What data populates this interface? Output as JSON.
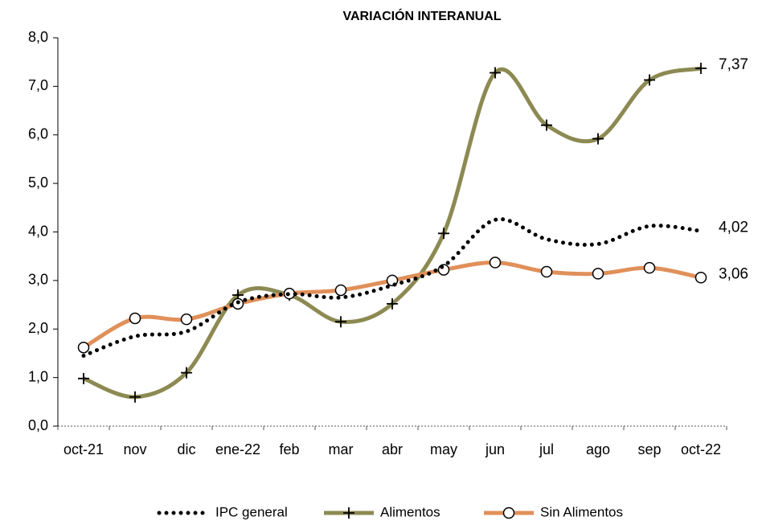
{
  "chart_data": {
    "type": "line",
    "title": "VARIACIÓN INTERANUAL",
    "categories": [
      "oct-21",
      "nov",
      "dic",
      "ene-22",
      "feb",
      "mar",
      "abr",
      "may",
      "jun",
      "jul",
      "ago",
      "sep",
      "oct-22"
    ],
    "series": [
      {
        "name": "IPC general",
        "color": "#000000",
        "style": "dotted",
        "marker": "none",
        "end_label": "4,02",
        "values": [
          1.45,
          1.85,
          1.95,
          2.55,
          2.72,
          2.65,
          2.9,
          3.3,
          4.25,
          3.85,
          3.75,
          4.12,
          4.02
        ]
      },
      {
        "name": "Alimentos",
        "color": "#8c8a52",
        "style": "solid",
        "marker": "plus",
        "end_label": "7,37",
        "values": [
          0.98,
          0.6,
          1.1,
          2.7,
          2.7,
          2.15,
          2.52,
          3.97,
          7.28,
          6.2,
          5.92,
          7.13,
          7.37
        ]
      },
      {
        "name": "Sin Alimentos",
        "color": "#e0905a",
        "style": "solid",
        "marker": "circle",
        "end_label": "3,06",
        "values": [
          1.62,
          2.22,
          2.2,
          2.52,
          2.73,
          2.8,
          3.0,
          3.22,
          3.37,
          3.18,
          3.14,
          3.26,
          3.06
        ]
      }
    ],
    "ylim": [
      0,
      8
    ],
    "yticks": [
      {
        "value": 0,
        "label": "0,0"
      },
      {
        "value": 1,
        "label": "1,0"
      },
      {
        "value": 2,
        "label": "2,0"
      },
      {
        "value": 3,
        "label": "3,0"
      },
      {
        "value": 4,
        "label": "4,0"
      },
      {
        "value": 5,
        "label": "5,0"
      },
      {
        "value": 6,
        "label": "6,0"
      },
      {
        "value": 7,
        "label": "7,0"
      },
      {
        "value": 8,
        "label": "8,0"
      }
    ],
    "grid": false,
    "legend": "bottom"
  }
}
